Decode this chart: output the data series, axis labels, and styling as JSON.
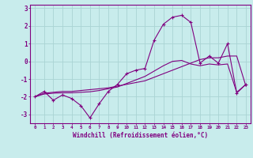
{
  "xlabel": "Windchill (Refroidissement éolien,°C)",
  "xlim": [
    -0.5,
    23.5
  ],
  "ylim": [
    -3.5,
    3.2
  ],
  "yticks": [
    -3,
    -2,
    -1,
    0,
    1,
    2,
    3
  ],
  "xticks": [
    0,
    1,
    2,
    3,
    4,
    5,
    6,
    7,
    8,
    9,
    10,
    11,
    12,
    13,
    14,
    15,
    16,
    17,
    18,
    19,
    20,
    21,
    22,
    23
  ],
  "background_color": "#c8ecec",
  "grid_color": "#aad4d4",
  "line_color": "#800080",
  "hours": [
    0,
    1,
    2,
    3,
    4,
    5,
    6,
    7,
    8,
    9,
    10,
    11,
    12,
    13,
    14,
    15,
    16,
    17,
    18,
    19,
    20,
    21,
    22,
    23
  ],
  "windchill": [
    -2.0,
    -1.7,
    -2.2,
    -1.9,
    -2.1,
    -2.5,
    -3.2,
    -2.4,
    -1.7,
    -1.3,
    -0.7,
    -0.5,
    -0.4,
    1.2,
    2.1,
    2.5,
    2.6,
    2.2,
    -0.1,
    0.3,
    -0.1,
    1.0,
    -1.8,
    -1.3
  ],
  "temp1": [
    -2.0,
    -1.8,
    -1.75,
    -1.7,
    -1.7,
    -1.65,
    -1.6,
    -1.55,
    -1.5,
    -1.4,
    -1.3,
    -1.2,
    -1.1,
    -0.9,
    -0.7,
    -0.5,
    -0.3,
    -0.1,
    0.1,
    0.2,
    0.2,
    0.3,
    0.3,
    -1.4
  ],
  "temp2": [
    -2.0,
    -1.85,
    -1.8,
    -1.78,
    -1.78,
    -1.75,
    -1.72,
    -1.65,
    -1.55,
    -1.45,
    -1.25,
    -1.05,
    -0.85,
    -0.55,
    -0.25,
    0.0,
    0.05,
    -0.15,
    -0.25,
    -0.15,
    -0.2,
    -0.15,
    -1.75,
    -1.3
  ]
}
